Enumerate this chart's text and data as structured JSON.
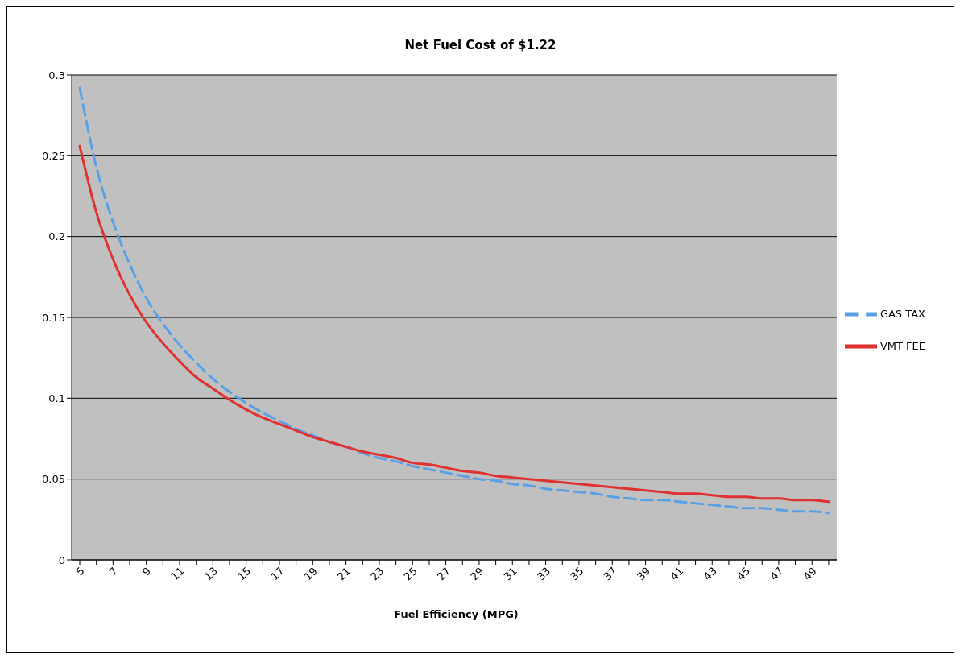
{
  "chart_data": {
    "type": "line",
    "title": "Net Fuel Cost of $1.22",
    "xlabel": "Fuel Efficiency (MPG)",
    "categories": [
      "5",
      null,
      "7",
      null,
      "9",
      null,
      "11",
      null,
      "13",
      null,
      "15",
      null,
      "17",
      null,
      "19",
      null,
      "21",
      null,
      "23",
      null,
      "25",
      null,
      "27",
      null,
      "29",
      null,
      "31",
      null,
      "33",
      null,
      "35",
      null,
      "37",
      null,
      "39",
      null,
      "41",
      null,
      "43",
      null,
      "45",
      null,
      "47",
      null,
      "49",
      null
    ],
    "series": [
      {
        "name": "GAS TAX",
        "color": "#5aa0e6",
        "line_style": "dashed",
        "values": [
          0.292,
          0.243,
          0.209,
          0.183,
          0.162,
          0.146,
          0.133,
          0.122,
          0.112,
          0.104,
          0.097,
          0.091,
          0.086,
          0.081,
          0.077,
          0.073,
          0.07,
          0.066,
          0.063,
          0.061,
          0.058,
          0.056,
          0.054,
          0.052,
          0.05,
          0.049,
          0.047,
          0.046,
          0.044,
          0.043,
          0.042,
          0.041,
          0.039,
          0.038,
          0.037,
          0.037,
          0.036,
          0.035,
          0.034,
          0.033,
          0.032,
          0.032,
          0.031,
          0.03,
          0.03,
          0.029
        ]
      },
      {
        "name": "VMT FEE",
        "color": "#e03030",
        "line_style": "solid",
        "values": [
          0.256,
          0.215,
          0.186,
          0.164,
          0.147,
          0.134,
          0.123,
          0.113,
          0.106,
          0.099,
          0.093,
          0.088,
          0.084,
          0.08,
          0.076,
          0.073,
          0.07,
          0.067,
          0.065,
          0.063,
          0.06,
          0.059,
          0.057,
          0.055,
          0.054,
          0.052,
          0.051,
          0.05,
          0.049,
          0.048,
          0.047,
          0.046,
          0.045,
          0.044,
          0.043,
          0.042,
          0.041,
          0.041,
          0.04,
          0.039,
          0.039,
          0.038,
          0.038,
          0.037,
          0.037,
          0.036
        ]
      }
    ],
    "ylim": [
      0,
      0.3
    ],
    "yticks": [
      0,
      0.05,
      0.1,
      0.15,
      0.2,
      0.25,
      0.3
    ],
    "grid": "y",
    "legend": "right",
    "marker": "none"
  }
}
